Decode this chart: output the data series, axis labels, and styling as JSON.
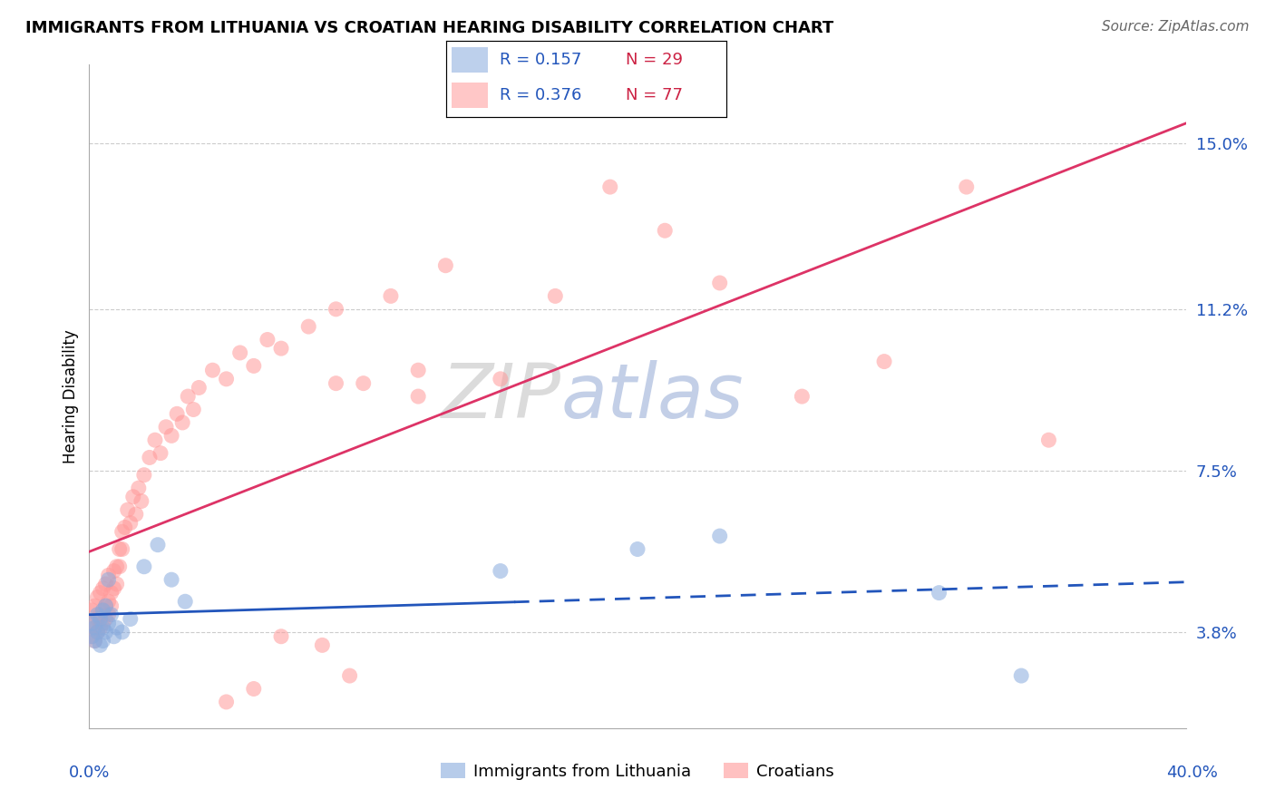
{
  "title": "IMMIGRANTS FROM LITHUANIA VS CROATIAN HEARING DISABILITY CORRELATION CHART",
  "source": "Source: ZipAtlas.com",
  "ylabel": "Hearing Disability",
  "yticks": [
    0.038,
    0.075,
    0.112,
    0.15
  ],
  "ytick_labels": [
    "3.8%",
    "7.5%",
    "11.2%",
    "15.0%"
  ],
  "xlim": [
    0.0,
    0.4
  ],
  "ylim": [
    0.016,
    0.168
  ],
  "r1": "0.157",
  "n1": "29",
  "r2": "0.376",
  "n2": "77",
  "legend_label1": "Immigrants from Lithuania",
  "legend_label2": "Croatians",
  "blue_scatter_color": "#88AADD",
  "pink_scatter_color": "#FF9999",
  "blue_line_color": "#2255BB",
  "pink_line_color": "#DD3366",
  "r_text_color": "#2255BB",
  "n_text_color": "#CC2244",
  "axis_label_color": "#2255BB",
  "grid_color": "#CCCCCC",
  "blue_x": [
    0.001,
    0.001,
    0.002,
    0.002,
    0.003,
    0.003,
    0.004,
    0.004,
    0.005,
    0.005,
    0.005,
    0.006,
    0.006,
    0.007,
    0.007,
    0.008,
    0.009,
    0.01,
    0.012,
    0.015,
    0.02,
    0.025,
    0.03,
    0.035,
    0.15,
    0.2,
    0.23,
    0.31,
    0.34
  ],
  "blue_y": [
    0.04,
    0.037,
    0.039,
    0.036,
    0.042,
    0.038,
    0.041,
    0.035,
    0.043,
    0.039,
    0.036,
    0.044,
    0.038,
    0.05,
    0.04,
    0.042,
    0.037,
    0.039,
    0.038,
    0.041,
    0.053,
    0.058,
    0.05,
    0.045,
    0.052,
    0.057,
    0.06,
    0.047,
    0.028
  ],
  "pink_x": [
    0.001,
    0.001,
    0.001,
    0.002,
    0.002,
    0.002,
    0.003,
    0.003,
    0.003,
    0.004,
    0.004,
    0.004,
    0.005,
    0.005,
    0.005,
    0.006,
    0.006,
    0.006,
    0.007,
    0.007,
    0.007,
    0.008,
    0.008,
    0.009,
    0.009,
    0.01,
    0.01,
    0.011,
    0.011,
    0.012,
    0.012,
    0.013,
    0.014,
    0.015,
    0.016,
    0.017,
    0.018,
    0.019,
    0.02,
    0.022,
    0.024,
    0.026,
    0.028,
    0.03,
    0.032,
    0.034,
    0.036,
    0.038,
    0.04,
    0.045,
    0.05,
    0.055,
    0.06,
    0.065,
    0.07,
    0.08,
    0.09,
    0.1,
    0.11,
    0.12,
    0.13,
    0.15,
    0.17,
    0.19,
    0.21,
    0.23,
    0.26,
    0.29,
    0.32,
    0.35,
    0.09,
    0.12,
    0.05,
    0.07,
    0.06,
    0.085,
    0.095
  ],
  "pink_y": [
    0.04,
    0.037,
    0.043,
    0.039,
    0.036,
    0.044,
    0.041,
    0.038,
    0.046,
    0.042,
    0.039,
    0.047,
    0.043,
    0.04,
    0.048,
    0.044,
    0.041,
    0.049,
    0.045,
    0.042,
    0.051,
    0.047,
    0.044,
    0.052,
    0.048,
    0.053,
    0.049,
    0.057,
    0.053,
    0.061,
    0.057,
    0.062,
    0.066,
    0.063,
    0.069,
    0.065,
    0.071,
    0.068,
    0.074,
    0.078,
    0.082,
    0.079,
    0.085,
    0.083,
    0.088,
    0.086,
    0.092,
    0.089,
    0.094,
    0.098,
    0.096,
    0.102,
    0.099,
    0.105,
    0.103,
    0.108,
    0.112,
    0.095,
    0.115,
    0.098,
    0.122,
    0.096,
    0.115,
    0.14,
    0.13,
    0.118,
    0.092,
    0.1,
    0.14,
    0.082,
    0.095,
    0.092,
    0.022,
    0.037,
    0.025,
    0.035,
    0.028
  ]
}
